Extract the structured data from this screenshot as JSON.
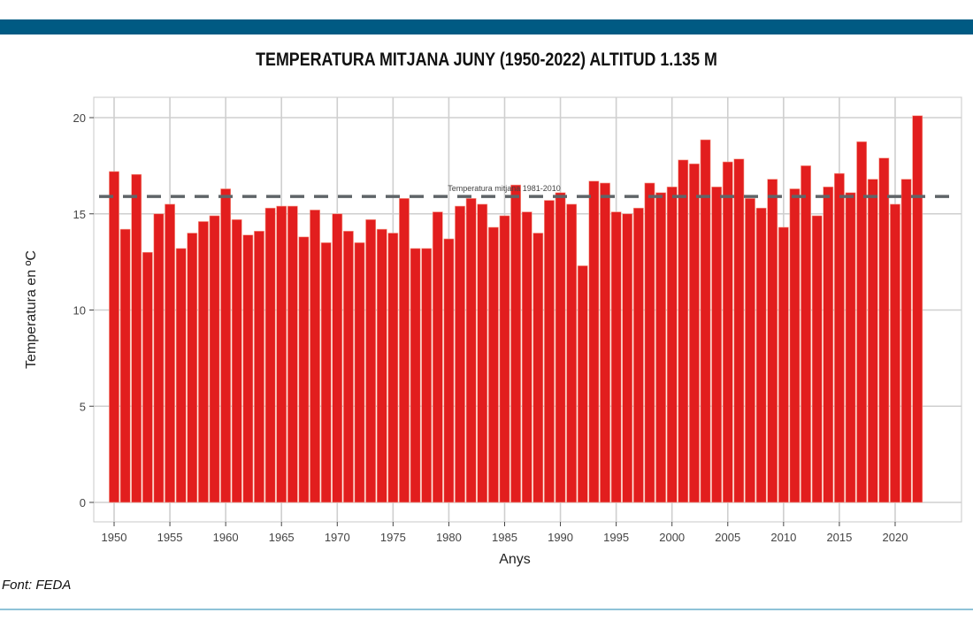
{
  "header": {
    "title": "TEMPERATURA MITJANA JUNY (1950-2022) ALTITUD 1.135 M"
  },
  "footer": {
    "source": "Font: FEDA"
  },
  "colors": {
    "band": "#005a83",
    "bar": "#e21e1e",
    "reference_line": "#5f6468"
  },
  "chart_data": {
    "type": "bar",
    "title": "TEMPERATURA MITJANA JUNY (1950-2022) ALTITUD 1.135 M",
    "xlabel": "Anys",
    "ylabel": "Temperatura en ºC",
    "ylim": [
      0,
      20.5
    ],
    "yticks": [
      0,
      5,
      10,
      15,
      20
    ],
    "xticks": [
      1950,
      1955,
      1960,
      1965,
      1970,
      1975,
      1980,
      1985,
      1990,
      1995,
      2000,
      2005,
      2010,
      2015,
      2020
    ],
    "grid": true,
    "x": [
      1950,
      1951,
      1952,
      1953,
      1954,
      1955,
      1956,
      1957,
      1958,
      1959,
      1960,
      1961,
      1962,
      1963,
      1964,
      1965,
      1966,
      1967,
      1968,
      1969,
      1970,
      1971,
      1972,
      1973,
      1974,
      1975,
      1976,
      1977,
      1978,
      1979,
      1980,
      1981,
      1982,
      1983,
      1984,
      1985,
      1986,
      1987,
      1988,
      1989,
      1990,
      1991,
      1992,
      1993,
      1994,
      1995,
      1996,
      1997,
      1998,
      1999,
      2000,
      2001,
      2002,
      2003,
      2004,
      2005,
      2006,
      2007,
      2008,
      2009,
      2010,
      2011,
      2012,
      2013,
      2014,
      2015,
      2016,
      2017,
      2018,
      2019,
      2020,
      2021,
      2022
    ],
    "values": [
      17.2,
      14.2,
      17.05,
      13.0,
      15.0,
      15.5,
      13.2,
      14.0,
      14.6,
      14.9,
      16.3,
      14.7,
      13.9,
      14.1,
      15.3,
      15.4,
      15.4,
      13.8,
      15.2,
      13.5,
      15.0,
      14.1,
      13.5,
      14.7,
      14.2,
      14.0,
      15.8,
      13.2,
      13.2,
      15.1,
      13.7,
      15.4,
      15.8,
      15.5,
      14.3,
      14.9,
      16.5,
      15.1,
      14.0,
      15.7,
      16.1,
      15.5,
      12.3,
      16.7,
      16.6,
      15.1,
      15.0,
      15.3,
      16.6,
      16.1,
      16.4,
      17.8,
      17.6,
      18.85,
      16.4,
      17.7,
      17.85,
      15.8,
      15.3,
      16.8,
      14.3,
      16.3,
      17.5,
      14.9,
      16.4,
      17.1,
      16.1,
      18.75,
      16.8,
      17.9,
      15.5,
      16.8,
      20.1
    ],
    "reference_line": {
      "value": 15.9,
      "label": "Temperatura mitjana 1981-2010",
      "style": "dashed"
    }
  }
}
